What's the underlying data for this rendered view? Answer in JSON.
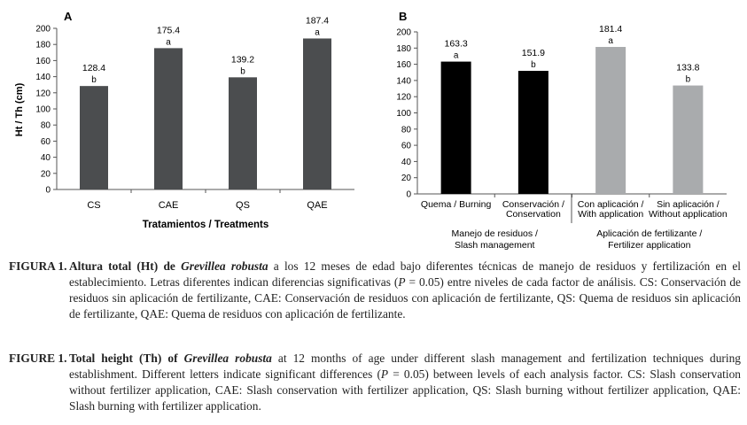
{
  "chart_data": [
    {
      "panel": "A",
      "type": "bar",
      "categories": [
        "CS",
        "CAE",
        "QS",
        "QAE"
      ],
      "values": [
        128.4,
        175.4,
        139.2,
        187.4
      ],
      "value_labels": [
        "128.4",
        "175.4",
        "139.2",
        "187.4"
      ],
      "letters": [
        "b",
        "a",
        "b",
        "a"
      ],
      "colors": [
        "#4b4d4f",
        "#4b4d4f",
        "#4b4d4f",
        "#4b4d4f"
      ],
      "ylabel": "Ht / Th (cm)",
      "xlabel": "Tratamientos / Treatments",
      "ylim": [
        0,
        200
      ],
      "yticks": [
        "0",
        "20",
        "40",
        "60",
        "80",
        "100",
        "120",
        "140",
        "160",
        "180",
        "200"
      ]
    },
    {
      "panel": "B",
      "type": "bar",
      "categories": [
        "Quema / Burning",
        "Conservación /\nConservation",
        "Con aplicación /\nWith application",
        "Sin aplicación /\nWithout application"
      ],
      "values": [
        163.3,
        151.9,
        181.4,
        133.8
      ],
      "value_labels": [
        "163.3",
        "151.9",
        "181.4",
        "133.8"
      ],
      "letters": [
        "a",
        "b",
        "a",
        "b"
      ],
      "colors": [
        "#000000",
        "#000000",
        "#a9abad",
        "#a9abad"
      ],
      "group_labels": [
        "Manejo de residuos /\nSlash management",
        "Aplicación de fertilizante /\nFertilizer application"
      ],
      "ylim": [
        0,
        200
      ],
      "yticks": [
        "0",
        "20",
        "40",
        "60",
        "80",
        "100",
        "120",
        "140",
        "160",
        "180",
        "200"
      ]
    }
  ],
  "captions": {
    "es": {
      "label": "FIGURA 1.",
      "text_before_species": "Altura total (Ht) de ",
      "species": "Grevillea robusta",
      "text_after_species": " a los 12 meses de edad bajo diferentes técnicas de manejo de residuos y fertilización en el establecimiento. Letras diferentes indican diferencias significativas (",
      "p_symbol": "P",
      "p_value": " = 0.05) entre niveles de cada factor de análisis. CS: Conservación de residuos sin aplicación de fertilizante, CAE: Conservación de residuos con aplicación de fertilizante, QS: Quema de residuos sin aplicación de fertilizante, QAE: Quema de residuos con aplicación de fertilizante."
    },
    "en": {
      "label": "FIGURE 1.",
      "text_before_species": "Total height (Th) of ",
      "species": "Grevillea robusta",
      "text_after_species": " at 12 months of age under different slash management and fertilization techniques during establishment. Different letters indicate significant differences (",
      "p_symbol": "P",
      "p_value": " = 0.05) between levels of each analysis factor. CS: Slash conservation without fertilizer application, CAE: Slash conservation with fertilizer application, QS: Slash burning without fertilizer application, QAE: Slash burning with fertilizer application."
    }
  }
}
